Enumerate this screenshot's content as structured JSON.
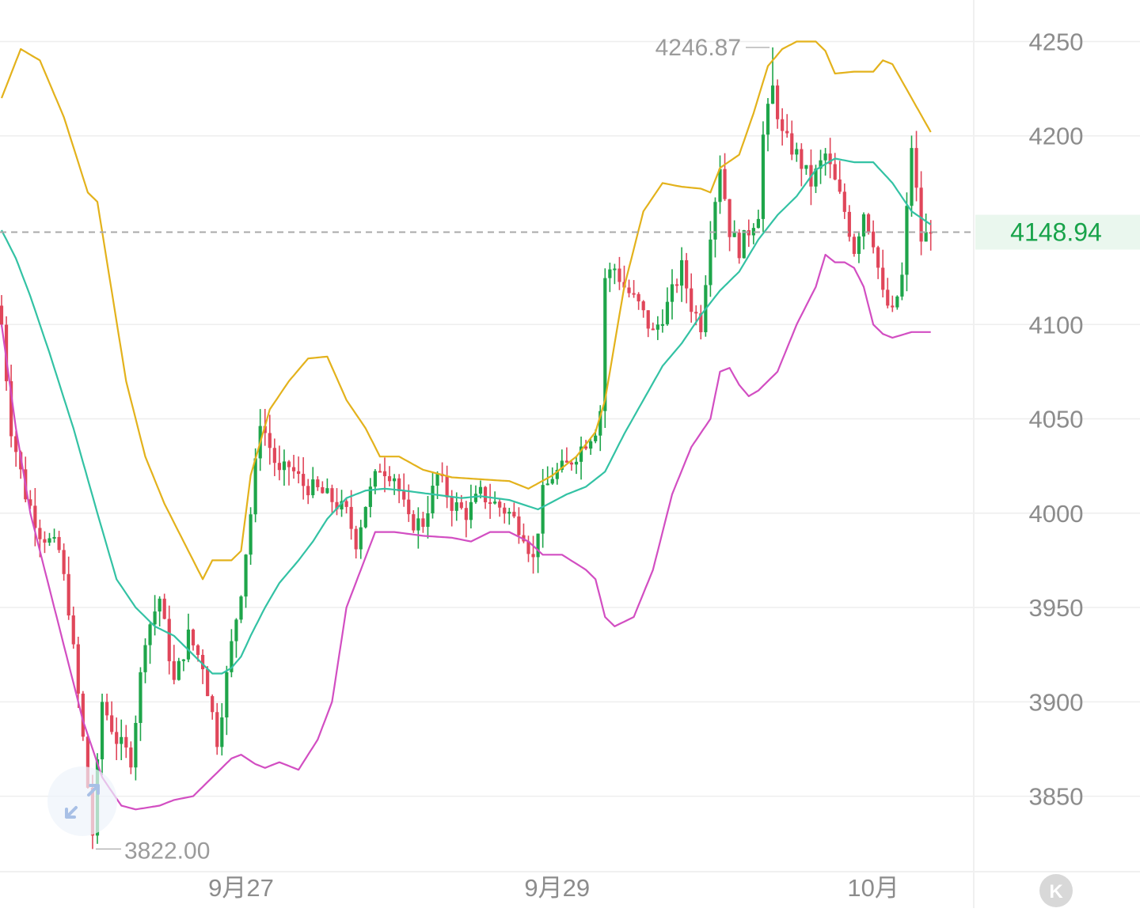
{
  "chart_data": {
    "type": "candlestick",
    "y_range": [
      3810,
      4272
    ],
    "y_ticks": [
      "4250",
      "4200",
      "4100",
      "4050",
      "4000",
      "3950",
      "3900",
      "3850"
    ],
    "x_labels": [
      {
        "label": "9月27",
        "index": 50
      },
      {
        "label": "9月29",
        "index": 116
      },
      {
        "label": "10月",
        "index": 182
      }
    ],
    "last_price": "4148.94",
    "last_price_value": 4148.94,
    "max_label": "4246.87",
    "max_value": 4246.87,
    "max_index": 161,
    "min_label": "3822.00",
    "min_value": 3822.0,
    "min_index": 19,
    "candle_count": 195,
    "colors": {
      "up": "#1ea54a",
      "down": "#e0465a",
      "upper_band": "#e3b21c",
      "middle_band": "#33c2a4",
      "lower_band": "#d24ec2",
      "grid": "#eeeeee",
      "price_tag_bg": "#eaf7ee"
    },
    "close_anchors": [
      [
        0,
        4100
      ],
      [
        2,
        4045
      ],
      [
        5,
        4010
      ],
      [
        8,
        3990
      ],
      [
        12,
        3980
      ],
      [
        14,
        3950
      ],
      [
        17,
        3880
      ],
      [
        19,
        3830
      ],
      [
        21,
        3900
      ],
      [
        24,
        3880
      ],
      [
        27,
        3870
      ],
      [
        30,
        3935
      ],
      [
        33,
        3955
      ],
      [
        36,
        3910
      ],
      [
        39,
        3935
      ],
      [
        42,
        3920
      ],
      [
        45,
        3880
      ],
      [
        48,
        3930
      ],
      [
        50,
        3960
      ],
      [
        52,
        4000
      ],
      [
        54,
        4050
      ],
      [
        56,
        4035
      ],
      [
        58,
        4020
      ],
      [
        60,
        4025
      ],
      [
        63,
        4015
      ],
      [
        66,
        4012
      ],
      [
        69,
        4007
      ],
      [
        72,
        4000
      ],
      [
        74,
        3985
      ],
      [
        76,
        4005
      ],
      [
        79,
        4025
      ],
      [
        82,
        4020
      ],
      [
        85,
        3995
      ],
      [
        88,
        3995
      ],
      [
        91,
        4020
      ],
      [
        94,
        4005
      ],
      [
        97,
        4000
      ],
      [
        100,
        4010
      ],
      [
        103,
        4005
      ],
      [
        106,
        4000
      ],
      [
        109,
        3990
      ],
      [
        111,
        3975
      ],
      [
        113,
        4010
      ],
      [
        115,
        4020
      ],
      [
        118,
        4025
      ],
      [
        121,
        4035
      ],
      [
        124,
        4045
      ],
      [
        125,
        4055
      ],
      [
        126,
        4125
      ],
      [
        128,
        4130
      ],
      [
        130,
        4120
      ],
      [
        133,
        4110
      ],
      [
        136,
        4095
      ],
      [
        139,
        4110
      ],
      [
        142,
        4130
      ],
      [
        144,
        4110
      ],
      [
        146,
        4100
      ],
      [
        148,
        4150
      ],
      [
        150,
        4185
      ],
      [
        152,
        4150
      ],
      [
        154,
        4140
      ],
      [
        156,
        4150
      ],
      [
        158,
        4160
      ],
      [
        159,
        4200
      ],
      [
        161,
        4225
      ],
      [
        163,
        4200
      ],
      [
        166,
        4190
      ],
      [
        169,
        4175
      ],
      [
        172,
        4190
      ],
      [
        174,
        4175
      ],
      [
        176,
        4160
      ],
      [
        178,
        4140
      ],
      [
        180,
        4160
      ],
      [
        182,
        4145
      ],
      [
        184,
        4115
      ],
      [
        186,
        4105
      ],
      [
        188,
        4125
      ],
      [
        190,
        4195
      ],
      [
        192,
        4145
      ],
      [
        194,
        4148.94
      ]
    ],
    "upper_band": [
      [
        0,
        4220
      ],
      [
        4,
        4246
      ],
      [
        8,
        4240
      ],
      [
        13,
        4210
      ],
      [
        18,
        4170
      ],
      [
        20,
        4165
      ],
      [
        26,
        4070
      ],
      [
        30,
        4030
      ],
      [
        34,
        4005
      ],
      [
        38,
        3985
      ],
      [
        42,
        3965
      ],
      [
        44,
        3975
      ],
      [
        48,
        3975
      ],
      [
        50,
        3980
      ],
      [
        52,
        4020
      ],
      [
        56,
        4055
      ],
      [
        60,
        4070
      ],
      [
        64,
        4082
      ],
      [
        68,
        4083
      ],
      [
        72,
        4060
      ],
      [
        76,
        4045
      ],
      [
        79,
        4030
      ],
      [
        83,
        4030
      ],
      [
        88,
        4023
      ],
      [
        94,
        4019
      ],
      [
        100,
        4018
      ],
      [
        106,
        4017
      ],
      [
        110,
        4013
      ],
      [
        115,
        4020
      ],
      [
        120,
        4030
      ],
      [
        124,
        4043
      ],
      [
        126,
        4060
      ],
      [
        130,
        4120
      ],
      [
        134,
        4160
      ],
      [
        138,
        4175
      ],
      [
        142,
        4173
      ],
      [
        146,
        4172
      ],
      [
        148,
        4170
      ],
      [
        150,
        4183
      ],
      [
        154,
        4190
      ],
      [
        157,
        4212
      ],
      [
        160,
        4237
      ],
      [
        163,
        4246
      ],
      [
        166,
        4250
      ],
      [
        170,
        4250
      ],
      [
        172,
        4245
      ],
      [
        174,
        4233
      ],
      [
        178,
        4234
      ],
      [
        182,
        4234
      ],
      [
        184,
        4240
      ],
      [
        186,
        4238
      ],
      [
        190,
        4220
      ],
      [
        194,
        4202
      ]
    ],
    "middle_band": [
      [
        0,
        4150
      ],
      [
        3,
        4135
      ],
      [
        6,
        4115
      ],
      [
        10,
        4085
      ],
      [
        15,
        4045
      ],
      [
        20,
        4000
      ],
      [
        24,
        3965
      ],
      [
        28,
        3950
      ],
      [
        32,
        3940
      ],
      [
        36,
        3935
      ],
      [
        40,
        3925
      ],
      [
        44,
        3915
      ],
      [
        46,
        3915
      ],
      [
        48,
        3918
      ],
      [
        50,
        3924
      ],
      [
        52,
        3935
      ],
      [
        55,
        3950
      ],
      [
        58,
        3963
      ],
      [
        62,
        3975
      ],
      [
        65,
        3985
      ],
      [
        68,
        3997
      ],
      [
        72,
        4008
      ],
      [
        76,
        4012
      ],
      [
        80,
        4013
      ],
      [
        84,
        4012
      ],
      [
        90,
        4010
      ],
      [
        96,
        4008
      ],
      [
        100,
        4009
      ],
      [
        106,
        4007
      ],
      [
        112,
        4002
      ],
      [
        118,
        4010
      ],
      [
        122,
        4014
      ],
      [
        126,
        4022
      ],
      [
        130,
        4042
      ],
      [
        134,
        4060
      ],
      [
        138,
        4078
      ],
      [
        142,
        4090
      ],
      [
        146,
        4105
      ],
      [
        150,
        4118
      ],
      [
        154,
        4128
      ],
      [
        158,
        4145
      ],
      [
        162,
        4158
      ],
      [
        166,
        4168
      ],
      [
        170,
        4182
      ],
      [
        174,
        4188
      ],
      [
        178,
        4186
      ],
      [
        182,
        4186
      ],
      [
        186,
        4175
      ],
      [
        190,
        4160
      ],
      [
        194,
        4153
      ]
    ],
    "lower_band": [
      [
        0,
        4100
      ],
      [
        3,
        4045
      ],
      [
        6,
        4000
      ],
      [
        10,
        3960
      ],
      [
        14,
        3920
      ],
      [
        17,
        3890
      ],
      [
        21,
        3860
      ],
      [
        25,
        3845
      ],
      [
        28,
        3843
      ],
      [
        33,
        3845
      ],
      [
        36,
        3848
      ],
      [
        40,
        3850
      ],
      [
        42,
        3855
      ],
      [
        44,
        3860
      ],
      [
        46,
        3865
      ],
      [
        48,
        3870
      ],
      [
        50,
        3872
      ],
      [
        53,
        3867
      ],
      [
        55,
        3865
      ],
      [
        58,
        3868
      ],
      [
        62,
        3864
      ],
      [
        66,
        3880
      ],
      [
        69,
        3900
      ],
      [
        72,
        3950
      ],
      [
        75,
        3970
      ],
      [
        78,
        3990
      ],
      [
        82,
        3990
      ],
      [
        88,
        3988
      ],
      [
        94,
        3987
      ],
      [
        98,
        3985
      ],
      [
        102,
        3990
      ],
      [
        106,
        3990
      ],
      [
        110,
        3985
      ],
      [
        113,
        3978
      ],
      [
        117,
        3978
      ],
      [
        122,
        3970
      ],
      [
        124,
        3965
      ],
      [
        126,
        3945
      ],
      [
        128,
        3940
      ],
      [
        132,
        3945
      ],
      [
        136,
        3970
      ],
      [
        140,
        4010
      ],
      [
        144,
        4035
      ],
      [
        148,
        4050
      ],
      [
        150,
        4075
      ],
      [
        152,
        4077
      ],
      [
        154,
        4068
      ],
      [
        156,
        4062
      ],
      [
        158,
        4065
      ],
      [
        162,
        4075
      ],
      [
        166,
        4100
      ],
      [
        170,
        4120
      ],
      [
        172,
        4137
      ],
      [
        174,
        4133
      ],
      [
        176,
        4133
      ],
      [
        178,
        4130
      ],
      [
        180,
        4120
      ],
      [
        182,
        4100
      ],
      [
        184,
        4095
      ],
      [
        186,
        4093
      ],
      [
        190,
        4096
      ],
      [
        194,
        4096
      ]
    ]
  },
  "expand_icon": "expand-arrows-icon",
  "k_icon": "k-logo-icon",
  "k_glyph": "K"
}
